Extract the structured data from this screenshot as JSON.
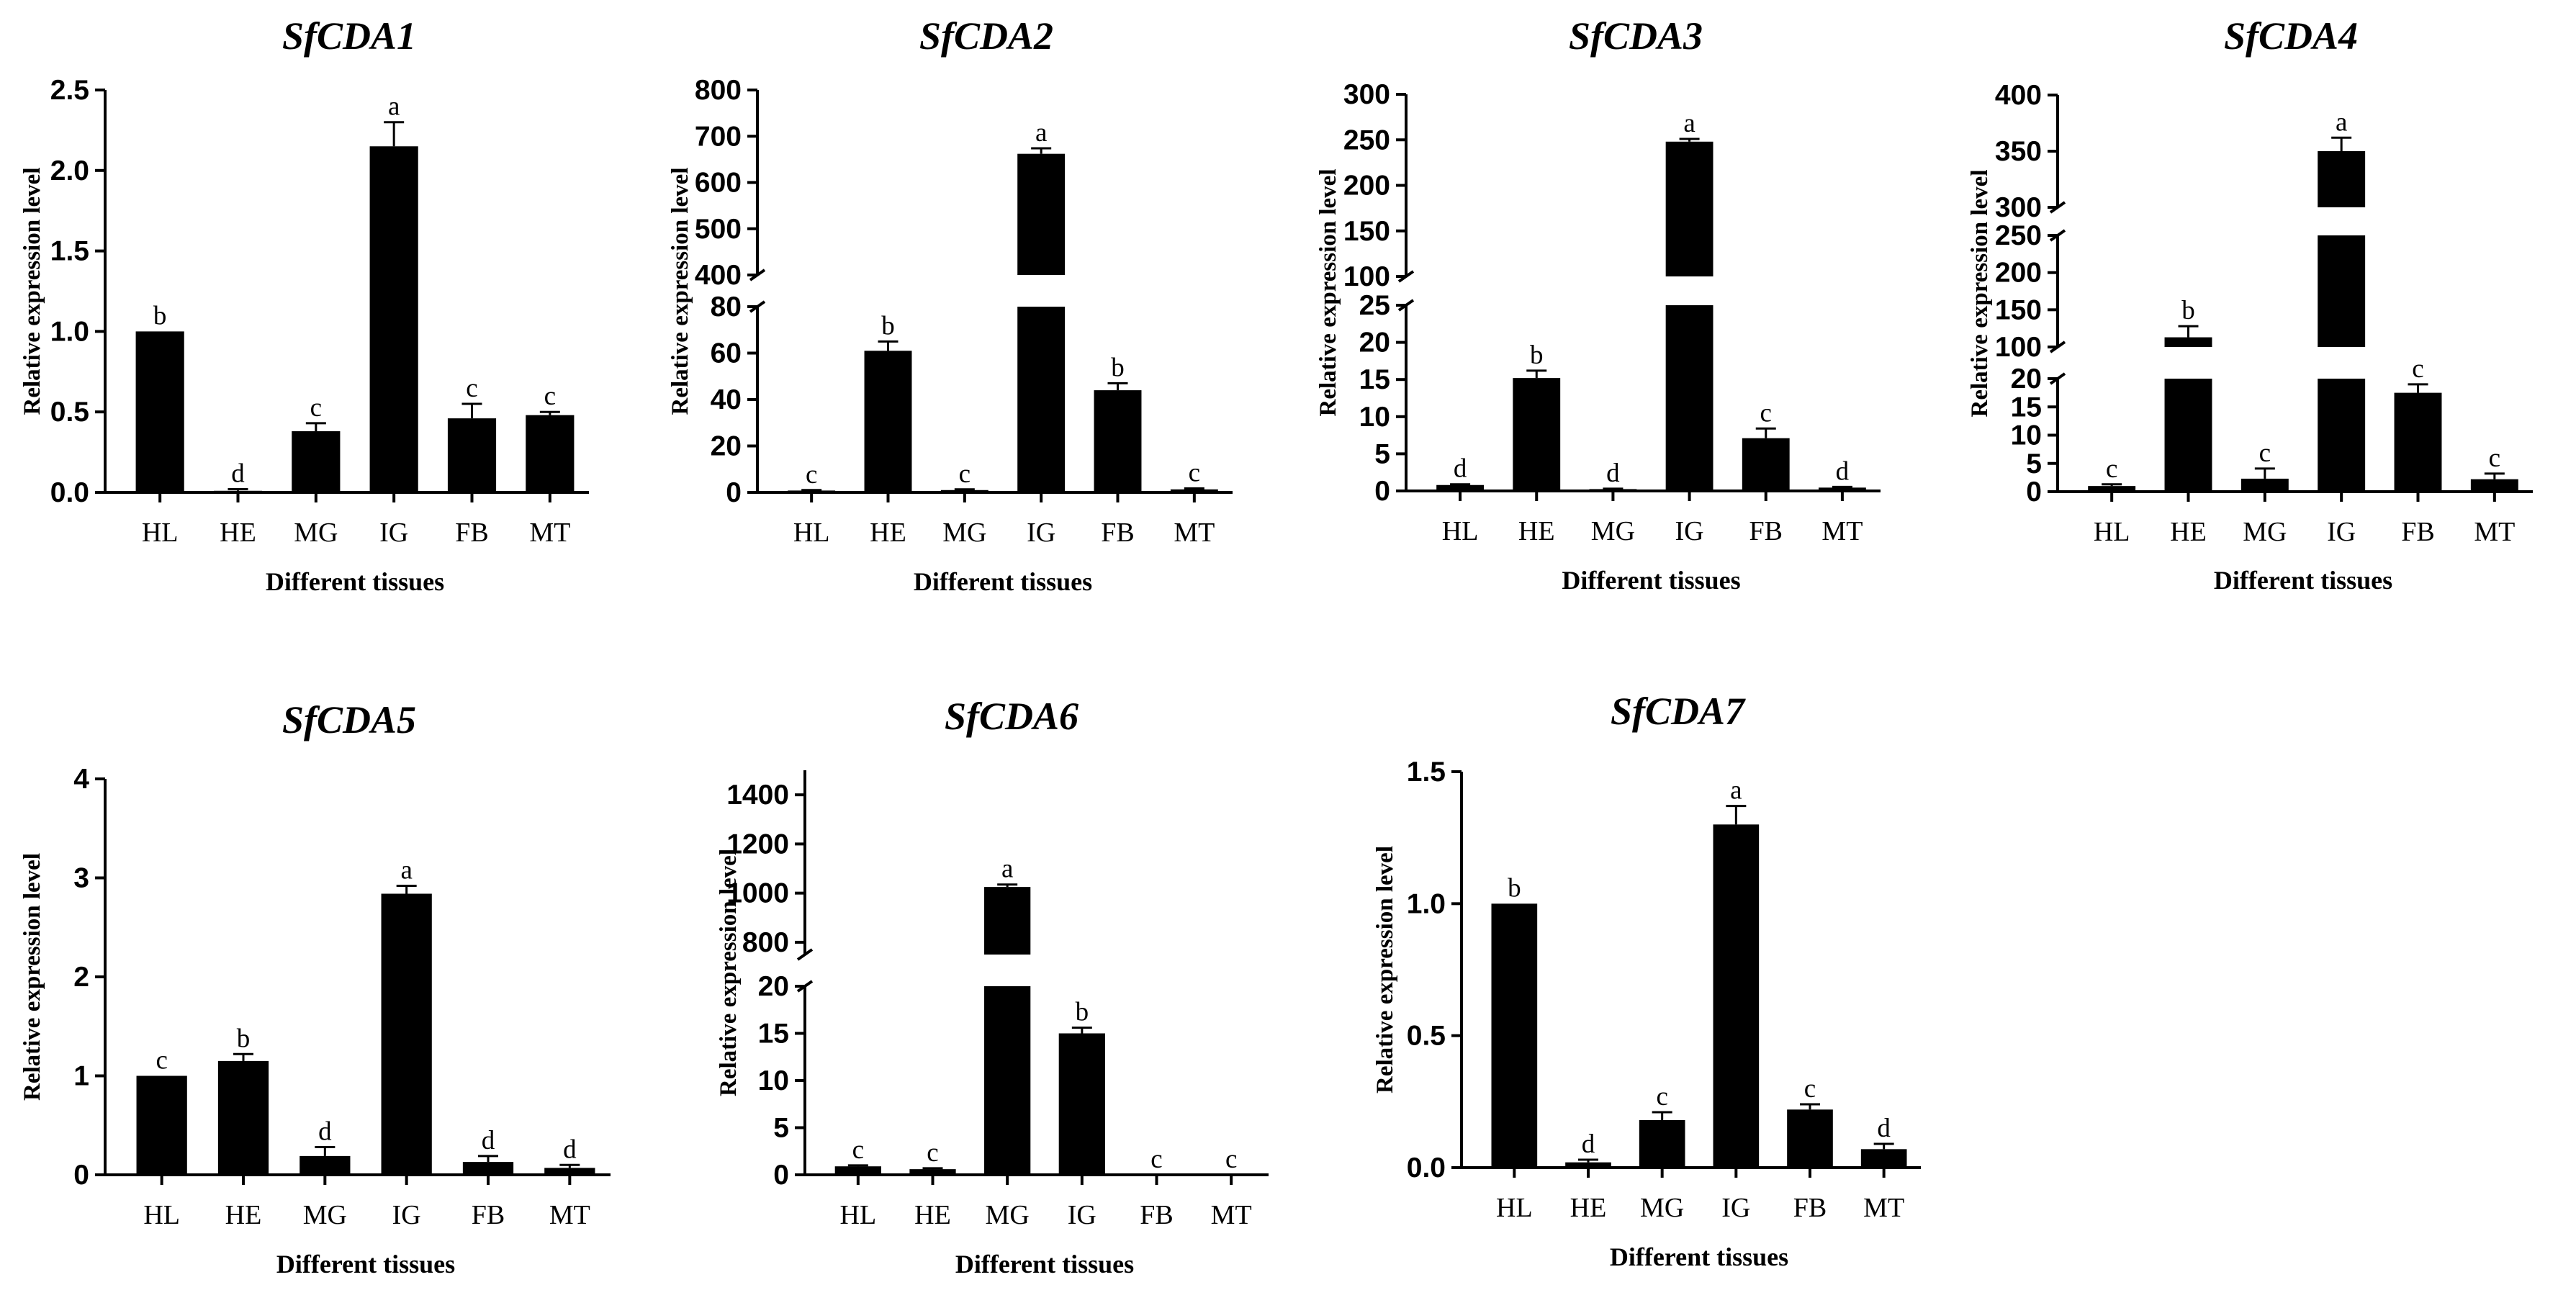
{
  "chart_data": [
    {
      "type": "bar",
      "title": "SfCDA1",
      "xlabel": "Different tissues",
      "ylabel": "Relative expression level",
      "categories": [
        "HL",
        "HE",
        "MG",
        "IG",
        "FB",
        "MT"
      ],
      "values": [
        1.0,
        0.01,
        0.38,
        2.15,
        0.46,
        0.48
      ],
      "errors": [
        0.0,
        0.01,
        0.05,
        0.15,
        0.09,
        0.02
      ],
      "significance": [
        "b",
        "d",
        "c",
        "a",
        "c",
        "c"
      ],
      "y_segments": [
        {
          "range": [
            0,
            2.5
          ],
          "ticks": [
            0.0,
            0.5,
            1.0,
            1.5,
            2.0,
            2.5
          ],
          "tick_labels": [
            "0.0",
            "0.5",
            "1.0",
            "1.5",
            "2.0",
            "2.5"
          ]
        }
      ],
      "grid": false,
      "legend": "none"
    },
    {
      "type": "bar",
      "title": "SfCDA2",
      "xlabel": "Different tissues",
      "ylabel": "Relative expression level",
      "categories": [
        "HL",
        "HE",
        "MG",
        "IG",
        "FB",
        "MT"
      ],
      "values": [
        0.8,
        61,
        1.0,
        662,
        44,
        1.3
      ],
      "errors": [
        0.2,
        4,
        0.3,
        12,
        3,
        0.4
      ],
      "significance": [
        "c",
        "b",
        "c",
        "a",
        "b",
        "c"
      ],
      "y_segments": [
        {
          "range": [
            0,
            80
          ],
          "ticks": [
            0,
            20,
            40,
            60,
            80
          ],
          "tick_labels": [
            "0",
            "20",
            "40",
            "60",
            "80"
          ]
        },
        {
          "range": [
            400,
            800
          ],
          "ticks": [
            400,
            500,
            600,
            700,
            800
          ],
          "tick_labels": [
            "400",
            "500",
            "600",
            "700",
            "800"
          ]
        }
      ],
      "axis_break": true,
      "grid": false,
      "legend": "none"
    },
    {
      "type": "bar",
      "title": "SfCDA3",
      "xlabel": "Different tissues",
      "ylabel": "Relative expression level",
      "categories": [
        "HL",
        "HE",
        "MG",
        "IG",
        "FB",
        "MT"
      ],
      "values": [
        0.8,
        15.2,
        0.25,
        248,
        7.1,
        0.45
      ],
      "errors": [
        0.1,
        1.0,
        0.05,
        3,
        1.3,
        0.1
      ],
      "significance": [
        "d",
        "b",
        "d",
        "a",
        "c",
        "d"
      ],
      "y_segments": [
        {
          "range": [
            0,
            25
          ],
          "ticks": [
            0,
            5,
            10,
            15,
            20,
            25
          ],
          "tick_labels": [
            "0",
            "5",
            "10",
            "15",
            "20",
            "25"
          ]
        },
        {
          "range": [
            100,
            300
          ],
          "ticks": [
            100,
            150,
            200,
            250,
            300
          ],
          "tick_labels": [
            "100",
            "150",
            "200",
            "250",
            "300"
          ]
        }
      ],
      "axis_break": true,
      "grid": false,
      "legend": "none"
    },
    {
      "type": "bar",
      "title": "SfCDA4",
      "xlabel": "Different tissues",
      "ylabel": "Relative expression level",
      "categories": [
        "HL",
        "HE",
        "MG",
        "IG",
        "FB",
        "MT"
      ],
      "values": [
        1.0,
        113,
        2.3,
        350,
        17.5,
        2.2
      ],
      "errors": [
        0.3,
        15,
        1.8,
        12,
        1.5,
        1.0
      ],
      "significance": [
        "c",
        "b",
        "c",
        "a",
        "c",
        "c"
      ],
      "y_segments": [
        {
          "range": [
            0,
            20
          ],
          "ticks": [
            0,
            5,
            10,
            15,
            20
          ],
          "tick_labels": [
            "0",
            "5",
            "10",
            "15",
            "20"
          ]
        },
        {
          "range": [
            100,
            250
          ],
          "ticks": [
            100,
            150,
            200,
            250
          ],
          "tick_labels": [
            "100",
            "150",
            "200",
            "250"
          ]
        },
        {
          "range": [
            300,
            400
          ],
          "ticks": [
            300,
            350,
            400
          ],
          "tick_labels": [
            "300",
            "350",
            "400"
          ]
        }
      ],
      "axis_break": true,
      "grid": false,
      "legend": "none"
    },
    {
      "type": "bar",
      "title": "SfCDA5",
      "xlabel": "Different tissues",
      "ylabel": "Relative expression level",
      "categories": [
        "HL",
        "HE",
        "MG",
        "IG",
        "FB",
        "MT"
      ],
      "values": [
        1.0,
        1.15,
        0.19,
        2.84,
        0.13,
        0.07
      ],
      "errors": [
        0.0,
        0.07,
        0.09,
        0.08,
        0.06,
        0.03
      ],
      "significance": [
        "c",
        "b",
        "d",
        "a",
        "d",
        "d"
      ],
      "y_segments": [
        {
          "range": [
            0,
            4
          ],
          "ticks": [
            0,
            1,
            2,
            3,
            4
          ],
          "tick_labels": [
            "0",
            "1",
            "2",
            "3",
            "4"
          ]
        }
      ],
      "grid": false,
      "legend": "none"
    },
    {
      "type": "bar",
      "title": "SfCDA6",
      "xlabel": "Different tissues",
      "ylabel": "Relative expression level",
      "categories": [
        "HL",
        "HE",
        "MG",
        "IG",
        "FB",
        "MT"
      ],
      "values": [
        0.9,
        0.6,
        1025,
        15.0,
        0,
        0
      ],
      "errors": [
        0.1,
        0.1,
        10,
        0.6,
        0,
        0
      ],
      "significance": [
        "c",
        "c",
        "a",
        "b",
        "c",
        "c"
      ],
      "y_segments": [
        {
          "range": [
            0,
            20
          ],
          "ticks": [
            0,
            5,
            10,
            15,
            20
          ],
          "tick_labels": [
            "0",
            "5",
            "10",
            "15",
            "20"
          ]
        },
        {
          "range": [
            750,
            1500
          ],
          "ticks": [
            800,
            1000,
            1200,
            1400
          ],
          "tick_labels": [
            "800",
            "1000",
            "1200",
            "1400"
          ]
        }
      ],
      "axis_break": true,
      "grid": false,
      "legend": "none"
    },
    {
      "type": "bar",
      "title": "SfCDA7",
      "xlabel": "Different tissues",
      "ylabel": "Relative expression level",
      "categories": [
        "HL",
        "HE",
        "MG",
        "IG",
        "FB",
        "MT"
      ],
      "values": [
        1.0,
        0.02,
        0.18,
        1.3,
        0.22,
        0.07
      ],
      "errors": [
        0.0,
        0.01,
        0.03,
        0.07,
        0.02,
        0.02
      ],
      "significance": [
        "b",
        "d",
        "c",
        "a",
        "c",
        "d"
      ],
      "y_segments": [
        {
          "range": [
            0,
            1.5
          ],
          "ticks": [
            0.0,
            0.5,
            1.0,
            1.5
          ],
          "tick_labels": [
            "0.0",
            "0.5",
            "1.0",
            "1.5"
          ]
        }
      ],
      "grid": false,
      "legend": "none"
    }
  ]
}
